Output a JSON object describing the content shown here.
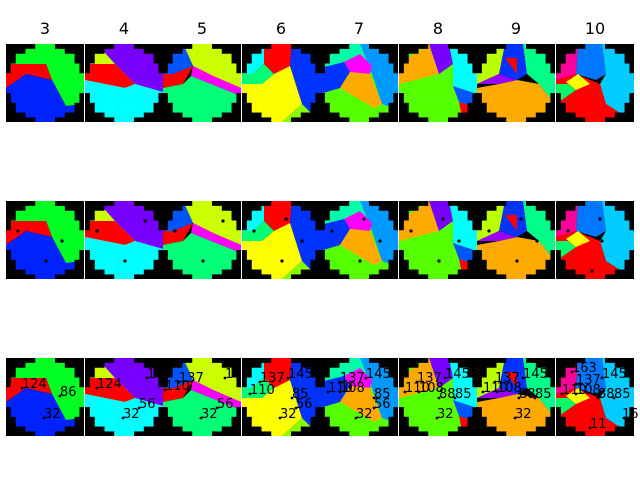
{
  "columns": [
    {
      "label": "3",
      "colors": [
        "#ff0000",
        "#00ff22",
        "#0022ff"
      ]
    },
    {
      "label": "4",
      "colors": [
        "#ccff00",
        "#ff0000",
        "#7700ff",
        "#00ffff",
        "#00ff66"
      ]
    },
    {
      "label": "5",
      "colors": [
        "#ccff00",
        "#0055ff",
        "#ff0000",
        "#ff00ff",
        "#00ff77"
      ]
    },
    {
      "label": "6",
      "colors": [
        "#ff0000",
        "#00ffff",
        "#0033ff",
        "#00ff77",
        "#ffff00",
        "#88ff00"
      ]
    },
    {
      "label": "7",
      "colors": [
        "#ff00ff",
        "#00ffaa",
        "#0099ff",
        "#0033ff",
        "#ffaa00",
        "#55ff00"
      ]
    },
    {
      "label": "8",
      "colors": [
        "#ffaa00",
        "#7700ff",
        "#00ffff",
        "#ff0000",
        "#0055ff",
        "#55ff00"
      ]
    },
    {
      "label": "9",
      "colors": [
        "#0033ff",
        "#00ff88",
        "#bbff00",
        "#ff0000",
        "#9900ff",
        "#ffaa00"
      ]
    },
    {
      "label": "10",
      "colors": [
        "#00ccff",
        "#ff0099",
        "#ffff00",
        "#00ff66",
        "#0077ff",
        "#ff0000"
      ]
    }
  ],
  "row3_labels": [
    [
      {
        "text": "124"
      },
      {
        "text": "86"
      },
      {
        "text": "32"
      }
    ],
    [
      {
        "text": "124"
      },
      {
        "text": "1"
      },
      {
        "text": "32"
      },
      {
        "text": "56"
      }
    ],
    [
      {
        "text": "137"
      },
      {
        "text": "110"
      },
      {
        "text": "1"
      },
      {
        "text": "32"
      },
      {
        "text": "56"
      }
    ],
    [
      {
        "text": "137"
      },
      {
        "text": "145"
      },
      {
        "text": "110"
      },
      {
        "text": "85"
      },
      {
        "text": "32"
      },
      {
        "text": "56"
      }
    ],
    [
      {
        "text": "137"
      },
      {
        "text": "145"
      },
      {
        "text": "110"
      },
      {
        "text": "108"
      },
      {
        "text": "85"
      },
      {
        "text": "56"
      },
      {
        "text": "32"
      }
    ],
    [
      {
        "text": "137"
      },
      {
        "text": "145"
      },
      {
        "text": "110"
      },
      {
        "text": "108"
      },
      {
        "text": "88"
      },
      {
        "text": "85"
      },
      {
        "text": "32"
      },
      {
        "text": "3"
      }
    ],
    [
      {
        "text": "137"
      },
      {
        "text": "145"
      },
      {
        "text": "110"
      },
      {
        "text": "108"
      },
      {
        "text": "88"
      },
      {
        "text": "85"
      },
      {
        "text": "32"
      }
    ],
    [
      {
        "text": "163"
      },
      {
        "text": "137"
      },
      {
        "text": "145"
      },
      {
        "text": "110"
      },
      {
        "text": "108"
      },
      {
        "text": "88"
      },
      {
        "text": "85"
      },
      {
        "text": "11"
      },
      {
        "text": "16"
      }
    ]
  ]
}
